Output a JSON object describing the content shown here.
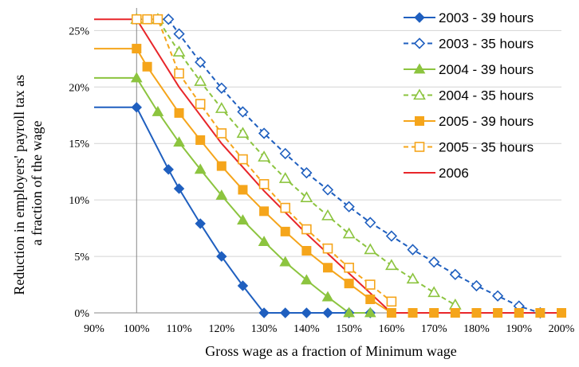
{
  "chart_data": {
    "type": "line",
    "xlabel": "Gross wage as a fraction of Minimum wage",
    "ylabel": [
      "Reduction in employers' payroll tax as",
      "a fraction of the wage"
    ],
    "xlim": [
      90,
      200
    ],
    "ylim": [
      0,
      27
    ],
    "x_ticks": [
      90,
      100,
      110,
      120,
      130,
      140,
      150,
      160,
      170,
      180,
      190,
      200
    ],
    "x_tick_labels": [
      "90%",
      "100%",
      "110%",
      "120%",
      "130%",
      "140%",
      "150%",
      "160%",
      "170%",
      "180%",
      "190%",
      "200%"
    ],
    "y_ticks": [
      0,
      5,
      10,
      15,
      20,
      25
    ],
    "y_tick_labels": [
      "0%",
      "5%",
      "10%",
      "15%",
      "20%",
      "25%"
    ],
    "grid": "horizontal",
    "legend_position": "top-right",
    "series": [
      {
        "name": "2003 - 39 hours",
        "color": "#1F5FBF",
        "line": "solid",
        "marker": "diamond",
        "fill": "filled",
        "x": [
          90,
          100,
          107.5,
          110,
          115,
          120,
          125,
          130,
          135,
          140,
          145,
          150,
          155
        ],
        "y": [
          18.2,
          18.2,
          12.7,
          11.0,
          7.9,
          5.0,
          2.4,
          0,
          0,
          0,
          0,
          0,
          0
        ]
      },
      {
        "name": "2003 - 35 hours",
        "color": "#1F5FBF",
        "line": "dashed",
        "marker": "diamond",
        "fill": "open",
        "x": [
          100,
          107.5,
          110,
          115,
          120,
          125,
          130,
          135,
          140,
          145,
          150,
          155,
          160,
          165,
          170,
          175,
          180,
          185,
          190,
          195
        ],
        "y": [
          26,
          26,
          24.7,
          22.2,
          19.9,
          17.8,
          15.9,
          14.1,
          12.4,
          10.9,
          9.4,
          8.0,
          6.8,
          5.6,
          4.5,
          3.4,
          2.4,
          1.5,
          0.6,
          0
        ]
      },
      {
        "name": "2004 - 39 hours",
        "color": "#8CC43F",
        "line": "solid",
        "marker": "triangle",
        "fill": "filled",
        "x": [
          90,
          100,
          105,
          110,
          115,
          120,
          125,
          130,
          135,
          140,
          145,
          150,
          155
        ],
        "y": [
          20.8,
          20.8,
          17.8,
          15.1,
          12.7,
          10.4,
          8.2,
          6.3,
          4.5,
          2.9,
          1.4,
          0,
          0
        ]
      },
      {
        "name": "2004 - 35 hours",
        "color": "#8CC43F",
        "line": "dashed",
        "marker": "triangle",
        "fill": "open",
        "x": [
          100,
          105,
          110,
          115,
          120,
          125,
          130,
          135,
          140,
          145,
          150,
          155,
          160,
          165,
          170,
          175
        ],
        "y": [
          26,
          26,
          23.1,
          20.5,
          18.1,
          15.9,
          13.8,
          11.9,
          10.2,
          8.6,
          7.0,
          5.6,
          4.2,
          3.0,
          1.8,
          0.7
        ]
      },
      {
        "name": "2005 - 39 hours",
        "color": "#F5A51B",
        "line": "solid",
        "marker": "square",
        "fill": "filled",
        "x": [
          90,
          100,
          102.5,
          110,
          115,
          120,
          125,
          130,
          135,
          140,
          145,
          150,
          155,
          160,
          165,
          170,
          175,
          180,
          185,
          190,
          195,
          200
        ],
        "y": [
          23.4,
          23.4,
          21.8,
          17.7,
          15.3,
          13.0,
          10.9,
          9.0,
          7.2,
          5.5,
          4.0,
          2.6,
          1.2,
          0,
          0,
          0,
          0,
          0,
          0,
          0,
          0,
          0
        ]
      },
      {
        "name": "2005 - 35 hours",
        "color": "#F5A51B",
        "line": "dashed",
        "marker": "square",
        "fill": "open",
        "x": [
          100,
          102.5,
          105,
          110,
          115,
          120,
          125,
          130,
          135,
          140,
          145,
          150,
          155,
          160
        ],
        "y": [
          26,
          26,
          26,
          21.2,
          18.5,
          15.9,
          13.6,
          11.4,
          9.3,
          7.4,
          5.7,
          4.0,
          2.5,
          1.0
        ]
      },
      {
        "name": "2006",
        "color": "#E8262A",
        "line": "solid",
        "marker": "none",
        "fill": "none",
        "x": [
          90,
          100,
          110,
          120,
          130,
          140,
          150,
          160,
          170,
          180,
          190,
          200
        ],
        "y": [
          26,
          26,
          20.0,
          15.0,
          10.8,
          7.0,
          3.5,
          0,
          0,
          0,
          0,
          0
        ]
      }
    ]
  }
}
